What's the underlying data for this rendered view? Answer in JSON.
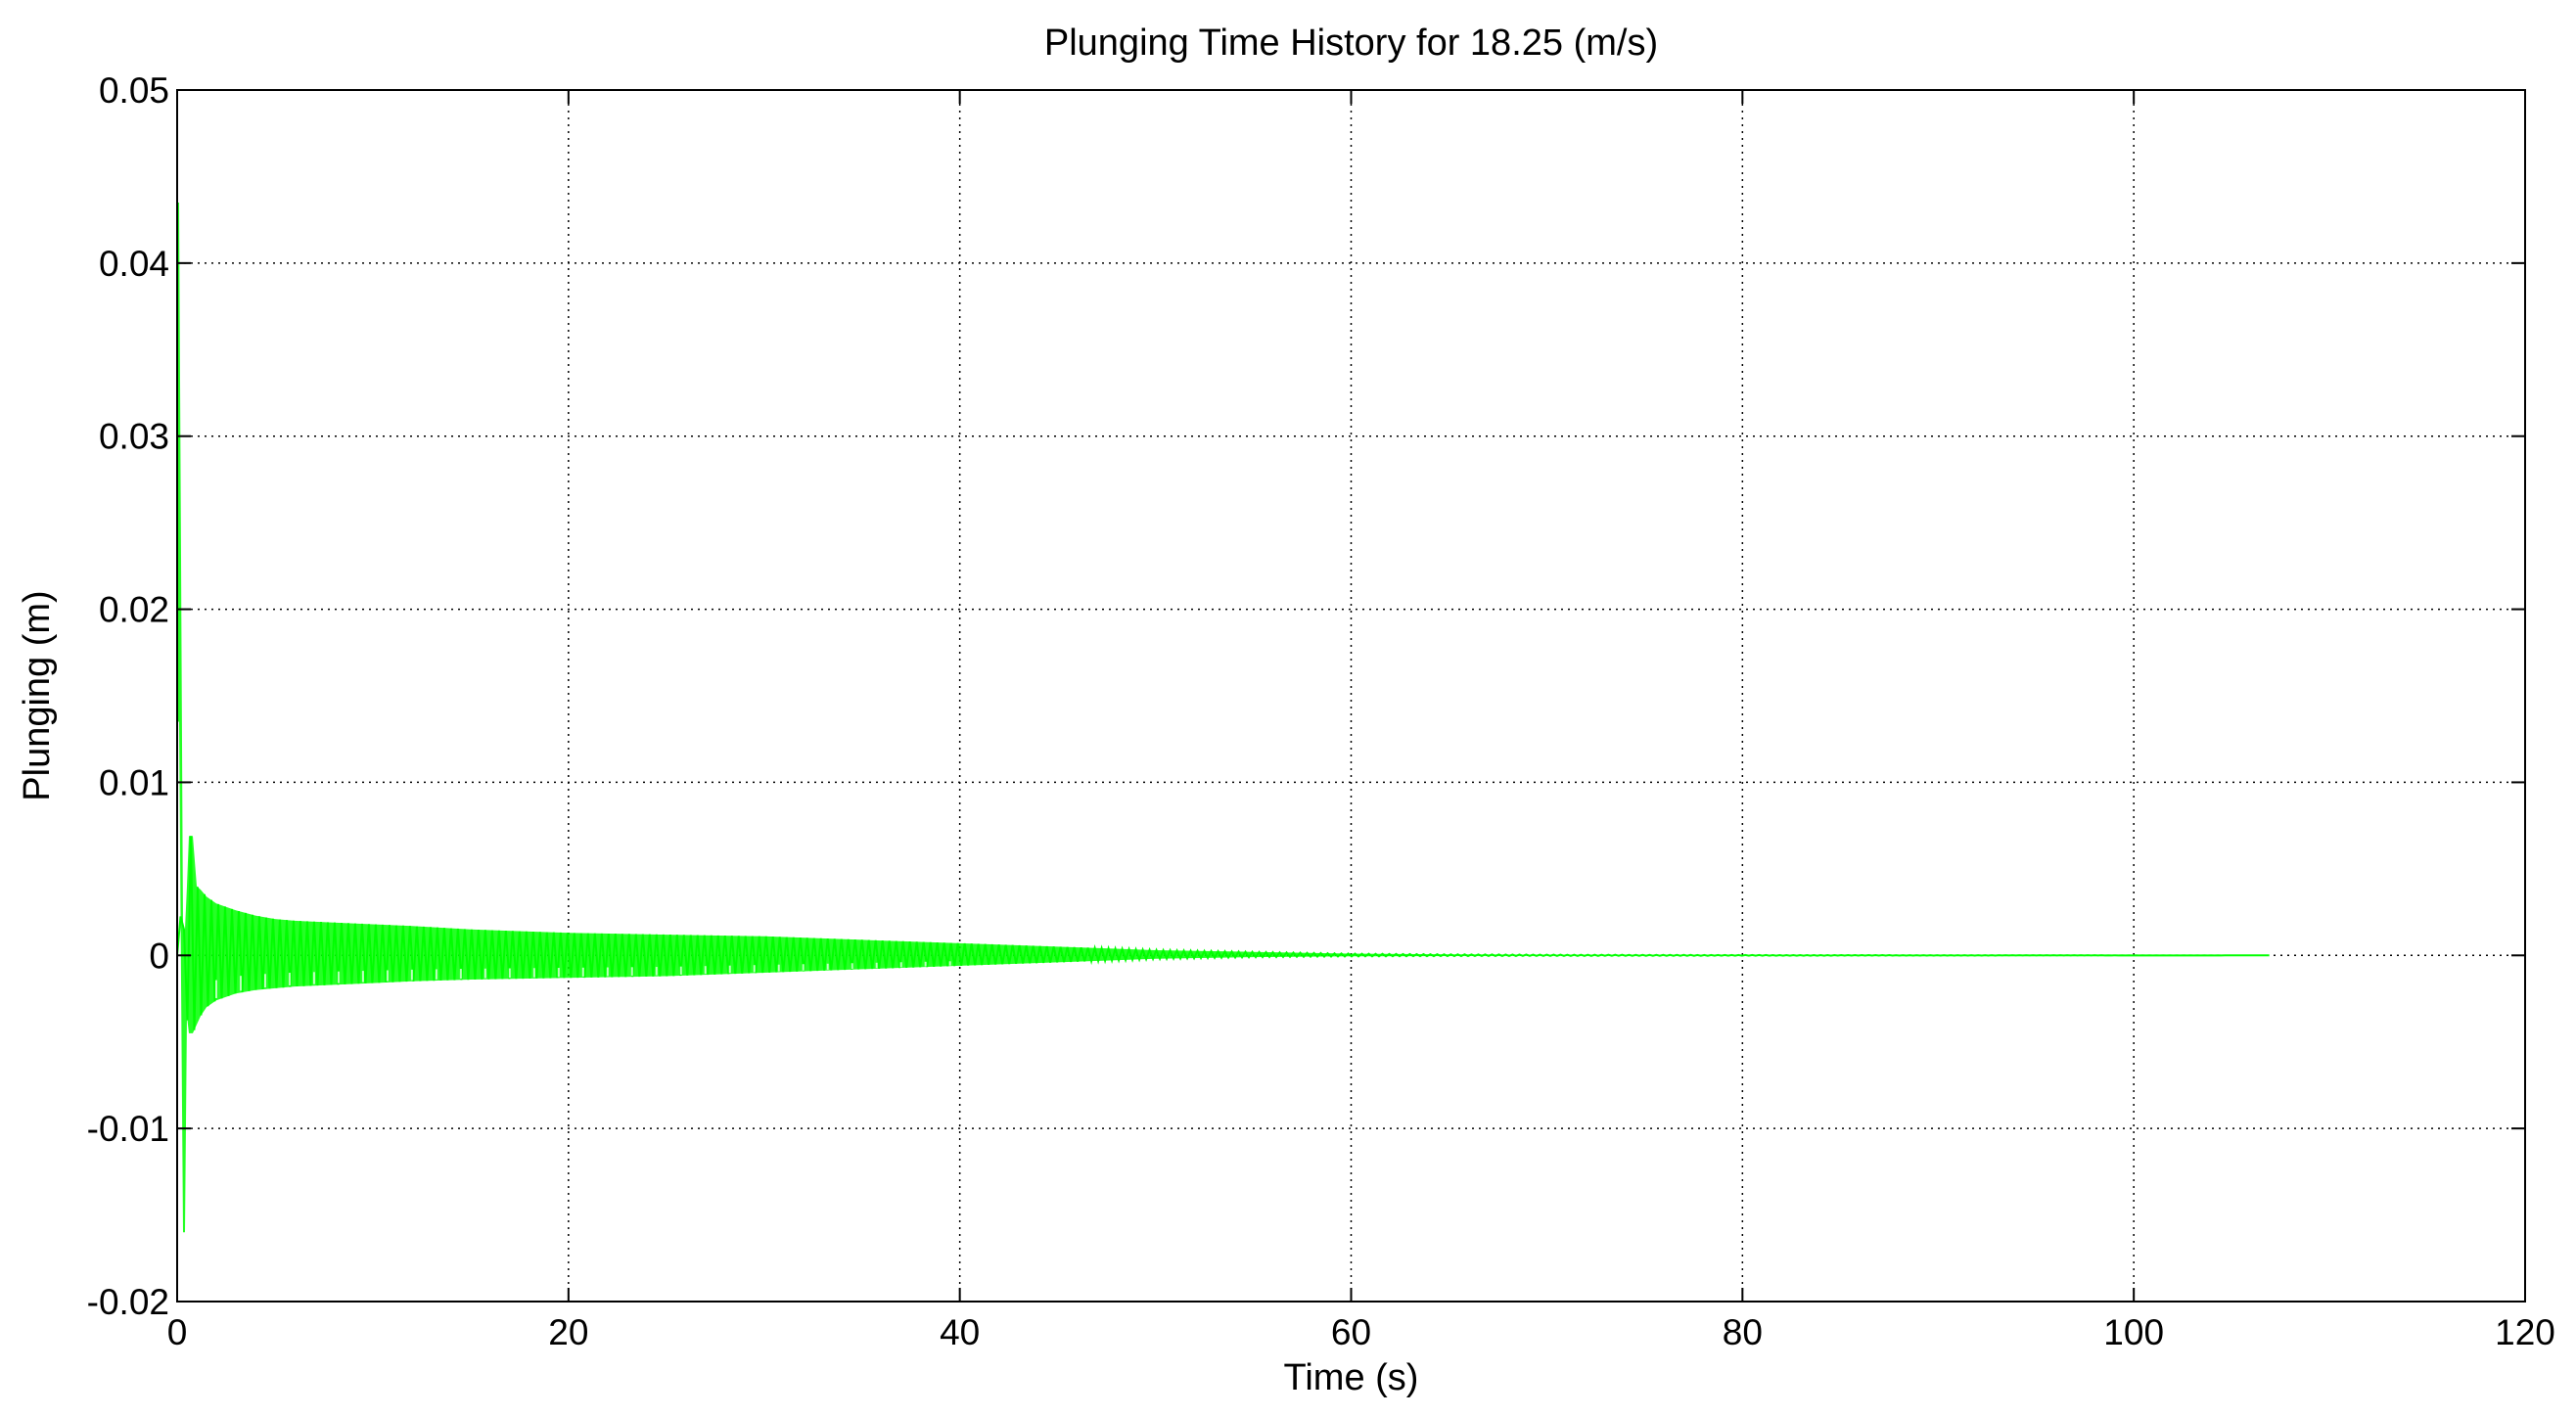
{
  "chart_data": {
    "type": "line",
    "title": "Plunging Time History for 18.25 (m/s)",
    "xlabel": "Time (s)",
    "ylabel": "Plunging (m)",
    "xlim": [
      0,
      120
    ],
    "ylim": [
      -0.02,
      0.05
    ],
    "x_ticks": [
      0,
      20,
      40,
      60,
      80,
      100,
      120
    ],
    "y_ticks": [
      -0.02,
      -0.01,
      0,
      0.01,
      0.02,
      0.03,
      0.04,
      0.05
    ],
    "x_tick_labels": [
      "0",
      "20",
      "40",
      "60",
      "80",
      "100",
      "120"
    ],
    "y_tick_labels": [
      "-0.02",
      "-0.01",
      "0",
      "0.01",
      "0.02",
      "0.03",
      "0.04",
      "0.05"
    ],
    "grid": true,
    "legend": "none",
    "series": [
      {
        "color": "#00ff00",
        "description": "decaying oscillation",
        "x": [
          0,
          0.05,
          0.1,
          0.2,
          0.3,
          0.4,
          0.5,
          0.6,
          0.8,
          1,
          1.2,
          1.5,
          2,
          3,
          4,
          5,
          6,
          8,
          10,
          12,
          15,
          20,
          25,
          30,
          35,
          40,
          45,
          50,
          55,
          60,
          65,
          70,
          80,
          90,
          100,
          107
        ],
        "upper": [
          0,
          0.0435,
          0.0435,
          0.023,
          0.0015,
          0.0015,
          0.004,
          0.0069,
          0.0069,
          0.004,
          0.0038,
          0.0034,
          0.003,
          0.0026,
          0.0023,
          0.0021,
          0.002,
          0.0019,
          0.0018,
          0.0017,
          0.0015,
          0.0013,
          0.0012,
          0.0011,
          0.0009,
          0.0007,
          0.0005,
          0.0003,
          0.0002,
          0.0001,
          6e-05,
          4e-05,
          2e-05,
          1e-05,
          5e-06,
          0
        ],
        "lower": [
          0,
          0.0135,
          0.0135,
          -0.0015,
          -0.016,
          -0.016,
          -0.0035,
          -0.0045,
          -0.0045,
          -0.004,
          -0.0035,
          -0.003,
          -0.0026,
          -0.0022,
          -0.002,
          -0.0019,
          -0.0018,
          -0.0017,
          -0.0016,
          -0.0015,
          -0.0014,
          -0.0013,
          -0.0012,
          -0.001,
          -0.0008,
          -0.0006,
          -0.0004,
          -0.0002,
          -0.0001,
          -6e-05,
          -4e-05,
          -3e-05,
          -2e-05,
          -1e-05,
          -5e-06,
          0
        ]
      }
    ]
  }
}
